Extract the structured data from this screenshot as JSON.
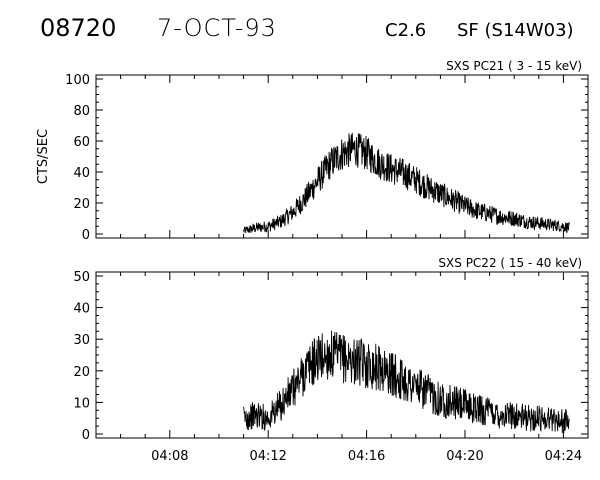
{
  "header": {
    "event_id": "08720",
    "date": "7-OCT-93",
    "flare_class": "C2.6",
    "flare_location": "SF (S14W03)"
  },
  "chart_data": [
    {
      "type": "line",
      "title": "SXS PC21  (  3 - 15 keV)",
      "ylabel": "CTS/SEC",
      "xlabel": "",
      "xlim": [
        "04:05:00",
        "04:25:00"
      ],
      "ylim": [
        0,
        100
      ],
      "ytick_labels": [
        "0",
        "20",
        "40",
        "60",
        "80",
        "100"
      ],
      "xtick_labels": [],
      "grid": false,
      "series": [
        {
          "values_sampled": [
            {
              "x": "04:11:00",
              "y": 2
            },
            {
              "x": "04:11:30",
              "y": 4
            },
            {
              "x": "04:12:00",
              "y": 5
            },
            {
              "x": "04:12:30",
              "y": 8
            },
            {
              "x": "04:13:00",
              "y": 14
            },
            {
              "x": "04:13:30",
              "y": 23
            },
            {
              "x": "04:14:00",
              "y": 34
            },
            {
              "x": "04:14:30",
              "y": 45
            },
            {
              "x": "04:15:00",
              "y": 52
            },
            {
              "x": "04:15:30",
              "y": 55
            },
            {
              "x": "04:16:00",
              "y": 52
            },
            {
              "x": "04:16:30",
              "y": 46
            },
            {
              "x": "04:17:00",
              "y": 42
            },
            {
              "x": "04:17:30",
              "y": 39
            },
            {
              "x": "04:18:00",
              "y": 35
            },
            {
              "x": "04:18:30",
              "y": 30
            },
            {
              "x": "04:19:00",
              "y": 26
            },
            {
              "x": "04:19:30",
              "y": 22
            },
            {
              "x": "04:20:00",
              "y": 18
            },
            {
              "x": "04:20:30",
              "y": 15
            },
            {
              "x": "04:21:00",
              "y": 13
            },
            {
              "x": "04:21:30",
              "y": 11
            },
            {
              "x": "04:22:00",
              "y": 10
            },
            {
              "x": "04:22:30",
              "y": 8
            },
            {
              "x": "04:23:00",
              "y": 7
            },
            {
              "x": "04:23:30",
              "y": 6
            },
            {
              "x": "04:24:00",
              "y": 5
            },
            {
              "x": "04:24:15",
              "y": 4
            }
          ]
        }
      ]
    },
    {
      "type": "line",
      "title": "SXS PC22  ( 15 - 40 keV)",
      "ylabel": "",
      "xlabel": "",
      "xlim": [
        "04:05:00",
        "04:25:00"
      ],
      "ylim": [
        0,
        50
      ],
      "ytick_labels": [
        "0",
        "10",
        "20",
        "30",
        "40",
        "50"
      ],
      "xtick_labels": [
        "04:08",
        "04:12",
        "04:16",
        "04:20",
        "04:24"
      ],
      "grid": false,
      "series": [
        {
          "values_sampled": [
            {
              "x": "04:11:00",
              "y": 5
            },
            {
              "x": "04:11:30",
              "y": 6
            },
            {
              "x": "04:12:00",
              "y": 5
            },
            {
              "x": "04:12:30",
              "y": 9
            },
            {
              "x": "04:13:00",
              "y": 14
            },
            {
              "x": "04:13:30",
              "y": 20
            },
            {
              "x": "04:14:00",
              "y": 24
            },
            {
              "x": "04:14:30",
              "y": 25
            },
            {
              "x": "04:15:00",
              "y": 24
            },
            {
              "x": "04:15:30",
              "y": 23
            },
            {
              "x": "04:16:00",
              "y": 22
            },
            {
              "x": "04:16:30",
              "y": 21
            },
            {
              "x": "04:17:00",
              "y": 19
            },
            {
              "x": "04:17:30",
              "y": 17
            },
            {
              "x": "04:18:00",
              "y": 15
            },
            {
              "x": "04:18:30",
              "y": 13
            },
            {
              "x": "04:19:00",
              "y": 11
            },
            {
              "x": "04:19:30",
              "y": 10
            },
            {
              "x": "04:20:00",
              "y": 9
            },
            {
              "x": "04:20:30",
              "y": 8
            },
            {
              "x": "04:21:00",
              "y": 7
            },
            {
              "x": "04:21:30",
              "y": 6
            },
            {
              "x": "04:22:00",
              "y": 6
            },
            {
              "x": "04:22:30",
              "y": 5
            },
            {
              "x": "04:23:00",
              "y": 5
            },
            {
              "x": "04:23:30",
              "y": 5
            },
            {
              "x": "04:24:00",
              "y": 4
            },
            {
              "x": "04:24:15",
              "y": 4
            }
          ]
        }
      ]
    }
  ]
}
